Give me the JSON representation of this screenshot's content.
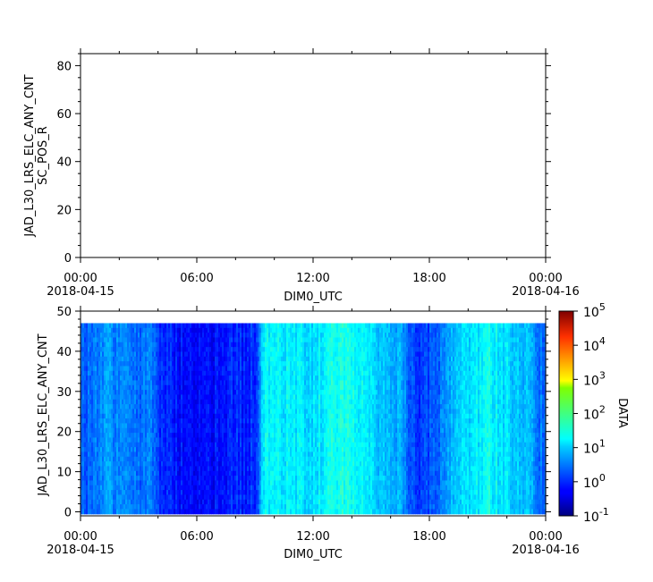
{
  "chart_data": [
    {
      "type": "line",
      "title": "",
      "ylabel_lines": [
        "JAD_L30_LRS_ELC_ANY_CNT",
        "SC_POS_R"
      ],
      "xlabel": "DIM0_UTC",
      "ylim": [
        0,
        85
      ],
      "yticks": [
        0,
        20,
        40,
        60,
        80
      ],
      "yticks_labels": [
        "0",
        "20",
        "40",
        "60",
        "80"
      ],
      "xlim_hours": [
        0,
        24
      ],
      "xticks_hours": [
        0,
        6,
        12,
        18,
        24
      ],
      "xtick_labels": [
        "00:00",
        "06:00",
        "12:00",
        "18:00",
        "00:00"
      ],
      "xtick_date_labels": [
        "2018-04-15",
        "",
        "",
        "",
        "2018-04-16"
      ],
      "series": []
    },
    {
      "type": "heatmap",
      "title": "",
      "ylabel": "JAD_L30_LRS_ELC_ANY_CNT",
      "xlabel": "DIM0_UTC",
      "ylim": [
        -1,
        50
      ],
      "data_y_range": [
        0,
        47
      ],
      "yticks": [
        0,
        10,
        20,
        30,
        40,
        50
      ],
      "yticks_labels": [
        "0",
        "10",
        "20",
        "30",
        "40",
        "50"
      ],
      "xlim_hours": [
        0,
        24
      ],
      "xticks_hours": [
        0,
        6,
        12,
        18,
        24
      ],
      "xtick_labels": [
        "00:00",
        "06:00",
        "12:00",
        "18:00",
        "00:00"
      ],
      "xtick_date_labels": [
        "2018-04-15",
        "",
        "",
        "",
        "2018-04-16"
      ],
      "colorbar": {
        "label": "DATA",
        "scale": "log",
        "range": [
          0.1,
          100000
        ],
        "tick_base": "10",
        "tick_exponents": [
          "-1",
          "0",
          "1",
          "2",
          "3",
          "4",
          "5"
        ],
        "colormap": "jet"
      },
      "time_hours": [
        0.0,
        0.5,
        1.0,
        1.5,
        2.0,
        2.5,
        3.0,
        3.5,
        4.0,
        4.5,
        5.0,
        5.5,
        6.0,
        6.5,
        7.0,
        7.5,
        8.0,
        8.5,
        9.0,
        9.5,
        10.0,
        10.5,
        11.0,
        11.5,
        12.0,
        12.5,
        13.0,
        13.5,
        14.0,
        14.5,
        15.0,
        15.5,
        16.0,
        16.5,
        17.0,
        17.5,
        18.0,
        18.5,
        19.0,
        19.5,
        20.0,
        20.5,
        21.0,
        21.5,
        22.0,
        22.5,
        23.0,
        23.5,
        24.0
      ],
      "log10_level": [
        0.25,
        0.4,
        0.5,
        0.6,
        0.55,
        0.45,
        0.4,
        0.45,
        0.1,
        -0.05,
        -0.15,
        -0.2,
        -0.2,
        -0.15,
        -0.2,
        -0.1,
        -0.05,
        -0.1,
        0.0,
        1.3,
        1.25,
        1.2,
        1.15,
        1.05,
        1.1,
        1.2,
        1.3,
        1.4,
        1.4,
        1.25,
        1.05,
        0.95,
        0.9,
        0.75,
        0.15,
        0.0,
        0.15,
        0.4,
        0.8,
        1.0,
        1.05,
        1.2,
        1.3,
        1.2,
        1.05,
        0.95,
        0.85,
        0.5,
        0.3
      ]
    }
  ]
}
